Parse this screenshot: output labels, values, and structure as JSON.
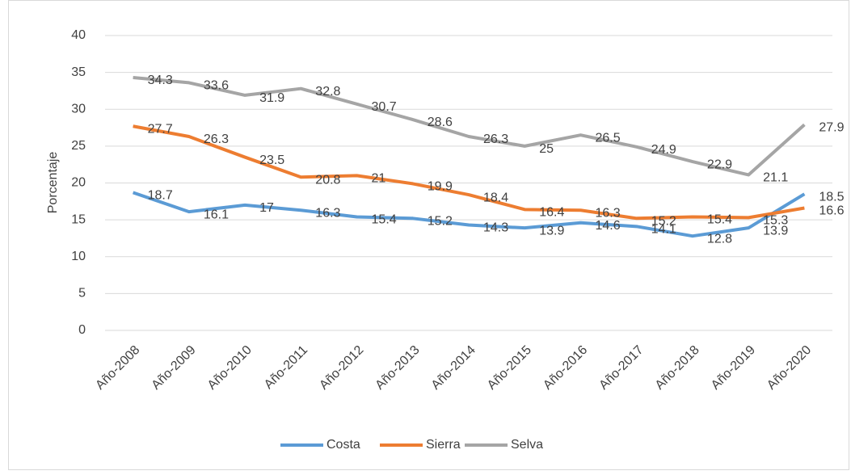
{
  "chart_data": {
    "type": "line",
    "y_label": "Porcentaje",
    "categories": [
      "Año-2008",
      "Año-2009",
      "Año-2010",
      "Año-2011",
      "Año-2012",
      "Año-2013",
      "Año-2014",
      "Año-2015",
      "Año-2016",
      "Año-2017",
      "Año-2018",
      "Año-2019",
      "Año-2020"
    ],
    "series": [
      {
        "name": "Costa",
        "color": "#5b9bd5",
        "values": [
          18.7,
          16.1,
          17,
          16.3,
          15.4,
          15.2,
          14.3,
          13.9,
          14.6,
          14.1,
          12.8,
          13.9,
          18.5
        ]
      },
      {
        "name": "Sierra",
        "color": "#ed7d31",
        "values": [
          27.7,
          26.3,
          23.5,
          20.8,
          21,
          19.9,
          18.4,
          16.4,
          16.3,
          15.2,
          15.4,
          15.3,
          16.6
        ]
      },
      {
        "name": "Selva",
        "color": "#a5a5a5",
        "values": [
          34.3,
          33.6,
          31.9,
          32.8,
          30.7,
          28.6,
          26.3,
          25,
          26.5,
          24.9,
          22.9,
          21.1,
          27.9
        ]
      }
    ],
    "ylim": [
      0,
      40
    ],
    "yticks": [
      0,
      5,
      10,
      15,
      20,
      25,
      30,
      35,
      40
    ],
    "grid": true,
    "legend": "bottom"
  }
}
